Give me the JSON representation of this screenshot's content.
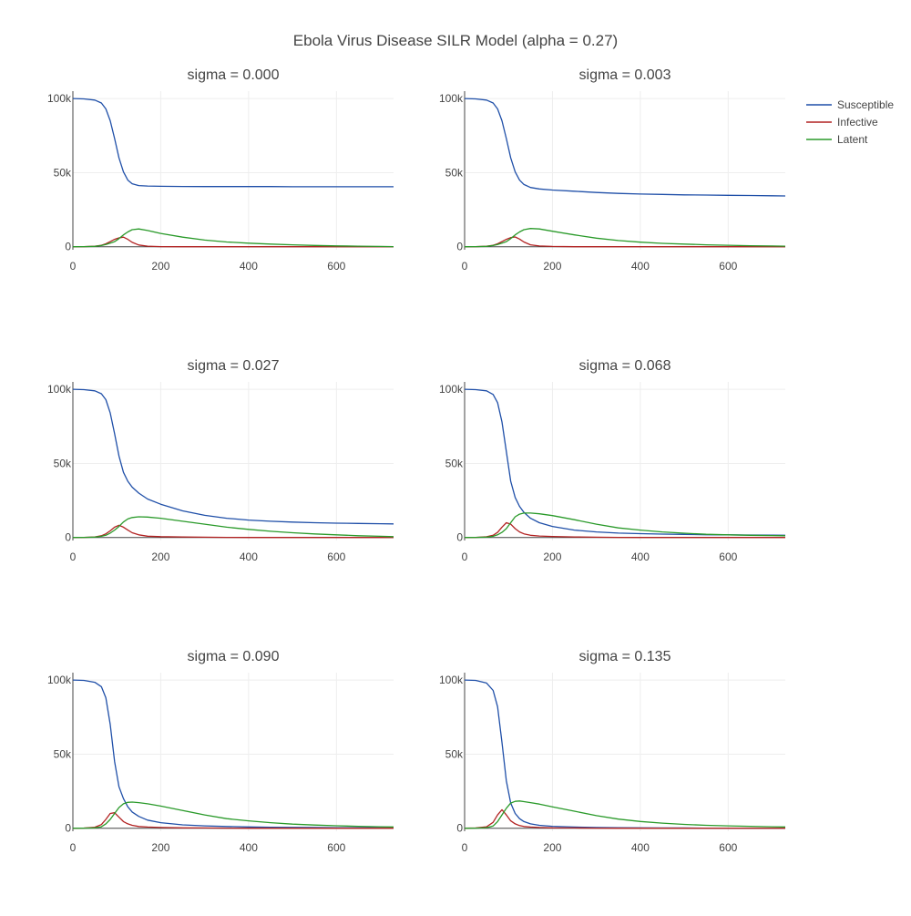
{
  "chart_data": {
    "type": "line",
    "title": "Ebola Virus Disease SILR Model (alpha = 0.27)",
    "x": [
      0,
      25,
      50,
      65,
      75,
      85,
      95,
      105,
      115,
      125,
      135,
      150,
      170,
      200,
      250,
      300,
      350,
      400,
      450,
      500,
      550,
      600,
      650,
      700,
      730
    ],
    "xlim": [
      0,
      730
    ],
    "ylim": [
      -2000,
      105000
    ],
    "xticks": [
      0,
      200,
      400,
      600
    ],
    "xtick_labels": [
      "0",
      "200",
      "400",
      "600"
    ],
    "yticks": [
      0,
      50000,
      100000
    ],
    "ytick_labels": [
      "0",
      "50k",
      "100k"
    ],
    "grid": true,
    "legend_position": "top-right",
    "series_names": [
      "Susceptible",
      "Infective",
      "Latent"
    ],
    "colors": {
      "Susceptible": "#1f4fa8",
      "Infective": "#b22222",
      "Latent": "#2a9a2a"
    },
    "subplots": [
      {
        "title": "sigma = 0.000",
        "series": [
          {
            "name": "Susceptible",
            "values": [
              100000,
              99800,
              99000,
              97000,
              93000,
              85000,
              73000,
              60000,
              50500,
              45000,
              42500,
              41300,
              41000,
              40800,
              40700,
              40600,
              40600,
              40600,
              40600,
              40500,
              40500,
              40500,
              40500,
              40500,
              40500
            ]
          },
          {
            "name": "Infective",
            "values": [
              0,
              100,
              400,
              1000,
              2000,
              3500,
              5000,
              6000,
              6500,
              5000,
              3000,
              1200,
              400,
              100,
              0,
              0,
              0,
              0,
              0,
              0,
              0,
              0,
              0,
              0,
              0
            ]
          },
          {
            "name": "Latent",
            "values": [
              0,
              100,
              300,
              800,
              1500,
              2500,
              3500,
              5500,
              8000,
              10000,
              11500,
              12000,
              11000,
              9000,
              6500,
              4500,
              3200,
              2400,
              1800,
              1300,
              900,
              600,
              400,
              200,
              100
            ]
          }
        ]
      },
      {
        "title": "sigma = 0.003",
        "series": [
          {
            "name": "Susceptible",
            "values": [
              100000,
              99800,
              99000,
              97000,
              93000,
              85000,
              73000,
              60000,
              50500,
              45000,
              42000,
              40000,
              39000,
              38300,
              37500,
              36600,
              36000,
              35600,
              35300,
              35000,
              34900,
              34700,
              34600,
              34400,
              34300
            ]
          },
          {
            "name": "Infective",
            "values": [
              0,
              100,
              400,
              1000,
              2000,
              3500,
              5000,
              6200,
              6600,
              5200,
              3200,
              1300,
              500,
              200,
              50,
              0,
              0,
              0,
              0,
              0,
              0,
              0,
              0,
              0,
              0
            ]
          },
          {
            "name": "Latent",
            "values": [
              0,
              100,
              300,
              800,
              1500,
              2500,
              3500,
              5500,
              8000,
              10000,
              11500,
              12300,
              12000,
              10500,
              8000,
              5800,
              4200,
              3100,
              2300,
              1800,
              1300,
              1000,
              700,
              500,
              400
            ]
          }
        ]
      },
      {
        "title": "sigma = 0.027",
        "series": [
          {
            "name": "Susceptible",
            "values": [
              100000,
              99800,
              99000,
              97000,
              93000,
              84000,
              70000,
              55000,
              44000,
              38000,
              34000,
              30000,
              26000,
              22500,
              18000,
              15000,
              13000,
              11800,
              11000,
              10400,
              10000,
              9700,
              9500,
              9300,
              9200
            ]
          },
          {
            "name": "Infective",
            "values": [
              0,
              100,
              400,
              1200,
              2500,
              4500,
              7000,
              8300,
              7000,
              5000,
              3200,
              1800,
              900,
              600,
              400,
              200,
              100,
              50,
              0,
              0,
              0,
              0,
              0,
              0,
              0
            ]
          },
          {
            "name": "Latent",
            "values": [
              0,
              100,
              300,
              800,
              1500,
              3000,
              5000,
              7500,
              10500,
              12500,
              13500,
              14000,
              13800,
              13000,
              11000,
              9000,
              7000,
              5500,
              4200,
              3200,
              2400,
              1800,
              1200,
              800,
              600
            ]
          }
        ]
      },
      {
        "title": "sigma = 0.068",
        "series": [
          {
            "name": "Susceptible",
            "values": [
              100000,
              99800,
              99000,
              96500,
              91000,
              78000,
              58000,
              38000,
              27000,
              21000,
              17000,
              13000,
              10000,
              7500,
              5000,
              3800,
              3000,
              2600,
              2300,
              2100,
              1900,
              1800,
              1700,
              1600,
              1500
            ]
          },
          {
            "name": "Infective",
            "values": [
              0,
              100,
              500,
              1500,
              3500,
              7000,
              10000,
              9000,
              6000,
              3800,
              2500,
              1500,
              1000,
              700,
              400,
              200,
              100,
              50,
              0,
              0,
              0,
              0,
              0,
              0,
              0
            ]
          },
          {
            "name": "Latent",
            "values": [
              0,
              100,
              300,
              800,
              1800,
              3500,
              6000,
              10000,
              14000,
              15800,
              16500,
              16500,
              16000,
              14800,
              12000,
              9000,
              6500,
              5000,
              3800,
              2900,
              2200,
              1800,
              1500,
              1300,
              1200
            ]
          }
        ]
      },
      {
        "title": "sigma = 0.090",
        "series": [
          {
            "name": "Susceptible",
            "values": [
              100000,
              99800,
              98500,
              95500,
              88000,
              70000,
              45000,
              28000,
              20000,
              14500,
              11000,
              8000,
              5500,
              3800,
              2300,
              1600,
              1200,
              900,
              700,
              600,
              500,
              400,
              400,
              300,
              300
            ]
          },
          {
            "name": "Infective",
            "values": [
              0,
              150,
              700,
              2500,
              6000,
              10000,
              10500,
              7500,
              4500,
              3000,
              2000,
              1200,
              800,
              500,
              300,
              200,
              100,
              50,
              0,
              0,
              0,
              0,
              0,
              0,
              0
            ]
          },
          {
            "name": "Latent",
            "values": [
              0,
              100,
              300,
              1000,
              3000,
              6000,
              10000,
              14000,
              16500,
              17500,
              17700,
              17300,
              16500,
              15000,
              12000,
              9000,
              6500,
              5000,
              3800,
              2800,
              2200,
              1700,
              1300,
              1000,
              900
            ]
          }
        ]
      },
      {
        "title": "sigma = 0.135",
        "series": [
          {
            "name": "Susceptible",
            "values": [
              100000,
              99800,
              98000,
              93000,
              82000,
              58000,
              32000,
              17000,
              10000,
              6500,
              4500,
              3000,
              2000,
              1300,
              800,
              500,
              400,
              300,
              200,
              200,
              100,
              100,
              100,
              100,
              100
            ]
          },
          {
            "name": "Infective",
            "values": [
              0,
              200,
              1000,
              4000,
              9000,
              12500,
              9000,
              5000,
              3000,
              1800,
              1200,
              800,
              500,
              300,
              200,
              100,
              50,
              0,
              0,
              0,
              0,
              0,
              0,
              0,
              0
            ]
          },
          {
            "name": "Latent",
            "values": [
              0,
              100,
              400,
              1500,
              4500,
              9000,
              13500,
              17000,
              18200,
              18400,
              18000,
              17300,
              16300,
              14500,
              11500,
              8500,
              6200,
              4600,
              3500,
              2600,
              2000,
              1600,
              1300,
              1000,
              900
            ]
          }
        ]
      }
    ]
  }
}
